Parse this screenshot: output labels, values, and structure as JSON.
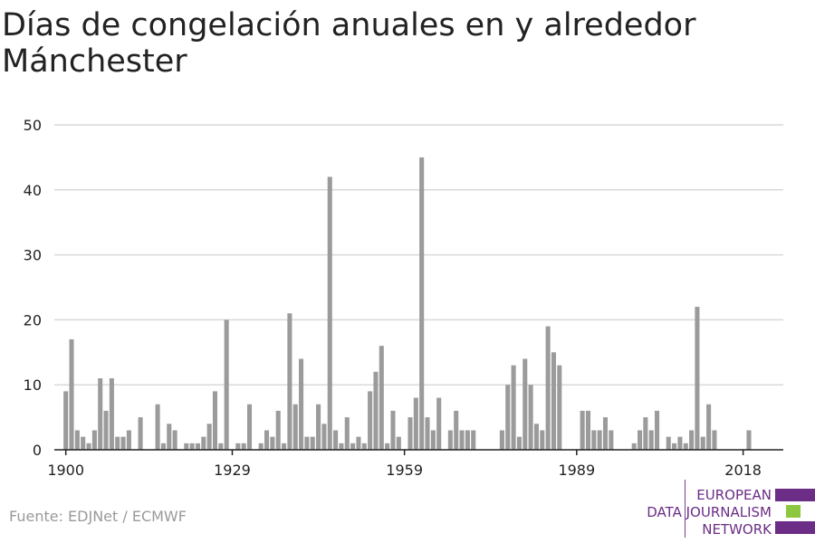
{
  "title": "Días de congelación anuales en y alrededor Mánchester",
  "source": "Fuente: EDJNet / ECMWF",
  "logo": {
    "lines": [
      "EUROPEAN",
      "DATA JOURNALISM",
      "NETWORK"
    ],
    "colors": {
      "purple": "#6b2d86",
      "green": "#8dc63f"
    }
  },
  "colors": {
    "bar": "#9b9b9b",
    "grid": "#d9d9d9",
    "axis": "#222222",
    "text": "#222222"
  },
  "chart_data": {
    "type": "bar",
    "title": "Días de congelación anuales en y alrededor Mánchester",
    "xlabel": "",
    "ylabel": "",
    "ylim": [
      0,
      50
    ],
    "xlim": [
      1898,
      2025
    ],
    "yticks": [
      0,
      10,
      20,
      30,
      40,
      50
    ],
    "xticks": [
      1900,
      1929,
      1959,
      1989,
      2018
    ],
    "grid": true,
    "x": [
      1900,
      1901,
      1902,
      1903,
      1904,
      1905,
      1906,
      1907,
      1908,
      1909,
      1910,
      1911,
      1912,
      1913,
      1914,
      1915,
      1916,
      1917,
      1918,
      1919,
      1920,
      1921,
      1922,
      1923,
      1924,
      1925,
      1926,
      1927,
      1928,
      1929,
      1930,
      1931,
      1932,
      1933,
      1934,
      1935,
      1936,
      1937,
      1938,
      1939,
      1940,
      1941,
      1942,
      1943,
      1944,
      1945,
      1946,
      1947,
      1948,
      1949,
      1950,
      1951,
      1952,
      1953,
      1954,
      1955,
      1956,
      1957,
      1958,
      1959,
      1960,
      1961,
      1962,
      1963,
      1964,
      1965,
      1966,
      1967,
      1968,
      1969,
      1970,
      1971,
      1972,
      1973,
      1974,
      1975,
      1976,
      1977,
      1978,
      1979,
      1980,
      1981,
      1982,
      1983,
      1984,
      1985,
      1986,
      1987,
      1988,
      1989,
      1990,
      1991,
      1992,
      1993,
      1994,
      1995,
      1996,
      1997,
      1998,
      1999,
      2000,
      2001,
      2002,
      2003,
      2004,
      2005,
      2006,
      2007,
      2008,
      2009,
      2010,
      2011,
      2012,
      2013,
      2014,
      2015,
      2016,
      2017,
      2018,
      2019
    ],
    "values": [
      9,
      17,
      3,
      2,
      1,
      3,
      11,
      6,
      11,
      2,
      2,
      3,
      0,
      5,
      0,
      0,
      7,
      1,
      4,
      3,
      0,
      1,
      1,
      1,
      2,
      4,
      9,
      1,
      20,
      0,
      1,
      1,
      7,
      0,
      1,
      3,
      2,
      6,
      1,
      21,
      7,
      14,
      2,
      2,
      7,
      4,
      42,
      3,
      1,
      5,
      1,
      2,
      1,
      9,
      12,
      16,
      1,
      6,
      2,
      0,
      5,
      8,
      45,
      5,
      3,
      8,
      0,
      3,
      6,
      3,
      3,
      3,
      0,
      0,
      0,
      0,
      3,
      10,
      13,
      2,
      14,
      10,
      4,
      3,
      19,
      15,
      13,
      0,
      0,
      0,
      6,
      6,
      3,
      3,
      5,
      3,
      0,
      0,
      0,
      1,
      3,
      5,
      3,
      6,
      0,
      2,
      1,
      2,
      1,
      3,
      22,
      2,
      7,
      3,
      0,
      0,
      0,
      0,
      0,
      3
    ]
  }
}
